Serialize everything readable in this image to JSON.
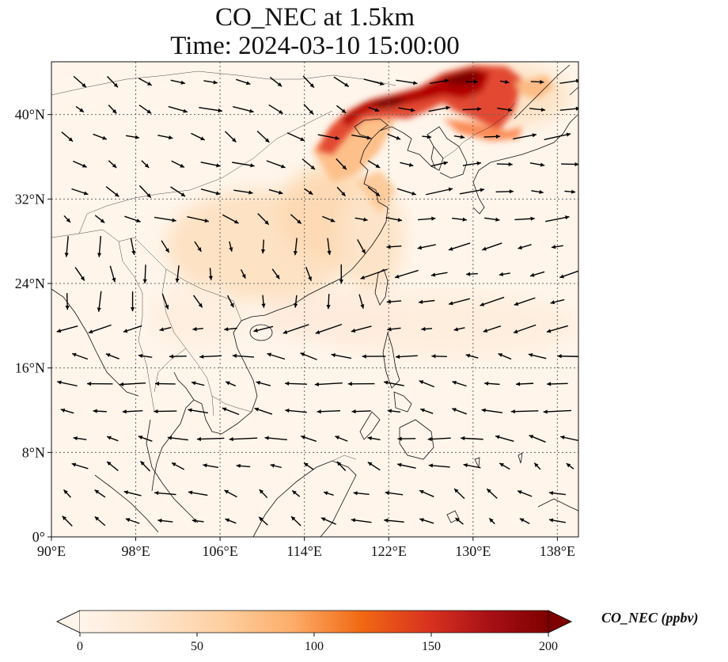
{
  "title": {
    "line1": "CO_NEC at 1.5km",
    "line2": "Time: 2024-03-10 15:00:00"
  },
  "map": {
    "projection": "PlateCarree",
    "lon_range": [
      90,
      140
    ],
    "lat_range": [
      0,
      45
    ],
    "x_ticks": [
      {
        "value": 90,
        "label": "90°E"
      },
      {
        "value": 98,
        "label": "98°E"
      },
      {
        "value": 106,
        "label": "106°E"
      },
      {
        "value": 114,
        "label": "114°E"
      },
      {
        "value": 122,
        "label": "122°E"
      },
      {
        "value": 130,
        "label": "130°E"
      },
      {
        "value": 138,
        "label": "138°E"
      }
    ],
    "y_ticks": [
      {
        "value": 0,
        "label": "0°"
      },
      {
        "value": 8,
        "label": "8°N"
      },
      {
        "value": 16,
        "label": "16°N"
      },
      {
        "value": 24,
        "label": "24°N"
      },
      {
        "value": 32,
        "label": "32°N"
      },
      {
        "value": 40,
        "label": "40°N"
      }
    ],
    "gridlines": "dotted",
    "background_color": "#fff5eb",
    "variable": "CO_NEC",
    "units": "ppbv",
    "high_concentration_regions": [
      {
        "region": "Northeast China / Korea",
        "level_ppbv": 190
      },
      {
        "region": "Bohai Rim",
        "level_ppbv": 150
      },
      {
        "region": "North China Plain",
        "level_ppbv": 70
      },
      {
        "region": "South & Central China",
        "level_ppbv": 40
      },
      {
        "region": "South China Sea / Philippine Sea",
        "level_ppbv": 20
      }
    ],
    "wind_vectors": "quiver",
    "wind_direction": "northwesterly over mainland, northeasterly over South China Sea, westerly over Japan"
  },
  "colorbar": {
    "cmap": "OrRd",
    "min": 0,
    "max": 200,
    "extend": "both",
    "ticks": [
      {
        "value": 0,
        "label": "0"
      },
      {
        "value": 50,
        "label": "50"
      },
      {
        "value": 100,
        "label": "100"
      },
      {
        "value": 150,
        "label": "150"
      },
      {
        "value": 200,
        "label": "200"
      }
    ],
    "label": "CO_NEC (ppbv)",
    "colors": [
      "#fff5eb",
      "#fee6ce",
      "#fdd0a2",
      "#fdae6b",
      "#f16913",
      "#d7301f",
      "#a50f15",
      "#7f0000"
    ]
  }
}
